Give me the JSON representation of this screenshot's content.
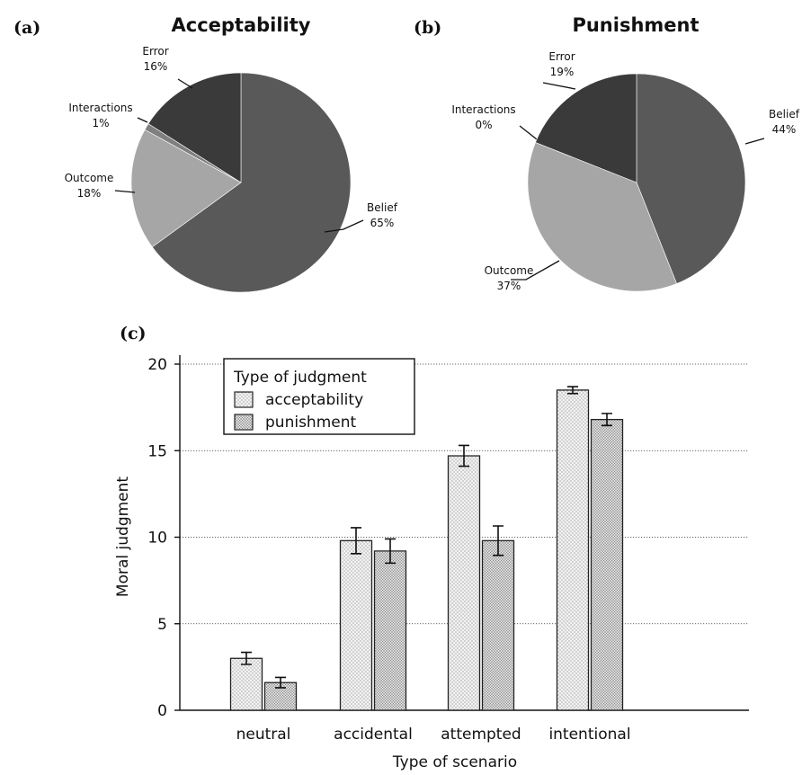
{
  "panels": {
    "a": {
      "tag": "(a)",
      "title": "Acceptability"
    },
    "b": {
      "tag": "(b)",
      "title": "Punishment"
    },
    "c": {
      "tag": "(c)"
    }
  },
  "colors": {
    "belief": "#595959",
    "outcome": "#a6a6a6",
    "interactions": "#7f7f7f",
    "error": "#3a3a3a"
  },
  "chart_data": [
    {
      "type": "pie",
      "title": "Acceptability",
      "slices": [
        {
          "label": "Belief",
          "value": 65,
          "value_text": "65%"
        },
        {
          "label": "Outcome",
          "value": 18,
          "value_text": "18%"
        },
        {
          "label": "Interactions",
          "value": 1,
          "value_text": "1%"
        },
        {
          "label": "Error",
          "value": 16,
          "value_text": "16%"
        }
      ]
    },
    {
      "type": "pie",
      "title": "Punishment",
      "slices": [
        {
          "label": "Belief",
          "value": 44,
          "value_text": "44%"
        },
        {
          "label": "Outcome",
          "value": 37,
          "value_text": "37%"
        },
        {
          "label": "Interactions",
          "value": 0,
          "value_text": "0%"
        },
        {
          "label": "Error",
          "value": 19,
          "value_text": "19%"
        }
      ]
    },
    {
      "type": "bar",
      "xlabel": "Type of scenario",
      "ylabel": "Moral judgment",
      "ylim": [
        0,
        20
      ],
      "yticks": [
        0,
        5,
        10,
        15,
        20
      ],
      "grid": true,
      "legend": {
        "title": "Type of judgment",
        "position": "top-left"
      },
      "categories": [
        "neutral",
        "accidental",
        "attempted",
        "intentional"
      ],
      "series": [
        {
          "name": "acceptability",
          "values": [
            3.0,
            9.8,
            14.7,
            18.5
          ],
          "error": [
            0.35,
            0.75,
            0.6,
            0.2
          ]
        },
        {
          "name": "punishment",
          "values": [
            1.6,
            9.2,
            9.8,
            16.8
          ],
          "error": [
            0.3,
            0.7,
            0.85,
            0.35
          ]
        }
      ]
    }
  ]
}
